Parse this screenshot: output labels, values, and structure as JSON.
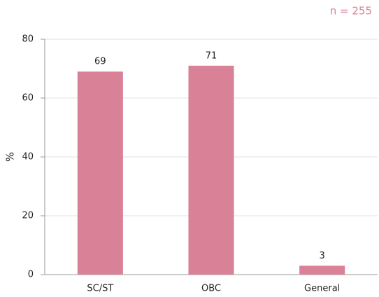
{
  "chart_data": {
    "type": "bar",
    "annotation": "n = 255",
    "y_label": "%",
    "categories": [
      "SC/ST",
      "OBC",
      "General"
    ],
    "values": [
      69,
      71,
      3
    ],
    "color": "#d98196",
    "ylim": [
      0,
      80
    ],
    "yticks": [
      0,
      20,
      40,
      60,
      80
    ],
    "grid": true
  }
}
